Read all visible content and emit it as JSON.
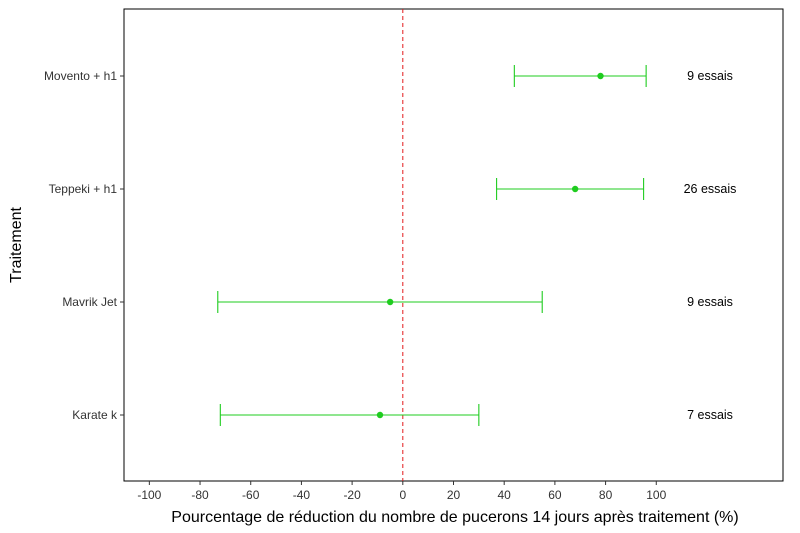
{
  "chart_data": {
    "type": "forest",
    "xlabel": "Pourcentage de réduction du nombre de pucerons 14 jours après traitement (%)",
    "ylabel": "Traitement",
    "xlim": [
      -110,
      150
    ],
    "x_ticks": [
      -100,
      -80,
      -60,
      -40,
      -20,
      0,
      20,
      40,
      60,
      80,
      100
    ],
    "x_tick_labels": [
      "-100",
      "-80",
      "-60",
      "-40",
      "-20",
      "0",
      "20",
      "40",
      "60",
      "80",
      "100"
    ],
    "reference_line": {
      "x": 0,
      "style": "dashed",
      "color": "#e31a1c"
    },
    "series_color": "#1fcc1f",
    "grid": false,
    "rows": [
      {
        "label": "Movento + h1",
        "estimate": 78,
        "lower": 44,
        "upper": 96,
        "annotation": "9 essais"
      },
      {
        "label": "Teppeki + h1",
        "estimate": 68,
        "lower": 37,
        "upper": 95,
        "annotation": "26 essais"
      },
      {
        "label": "Mavrik Jet",
        "estimate": -5,
        "lower": -73,
        "upper": 55,
        "annotation": "9 essais"
      },
      {
        "label": "Karate k",
        "estimate": -9,
        "lower": -72,
        "upper": 30,
        "annotation": "7 essais"
      }
    ]
  }
}
